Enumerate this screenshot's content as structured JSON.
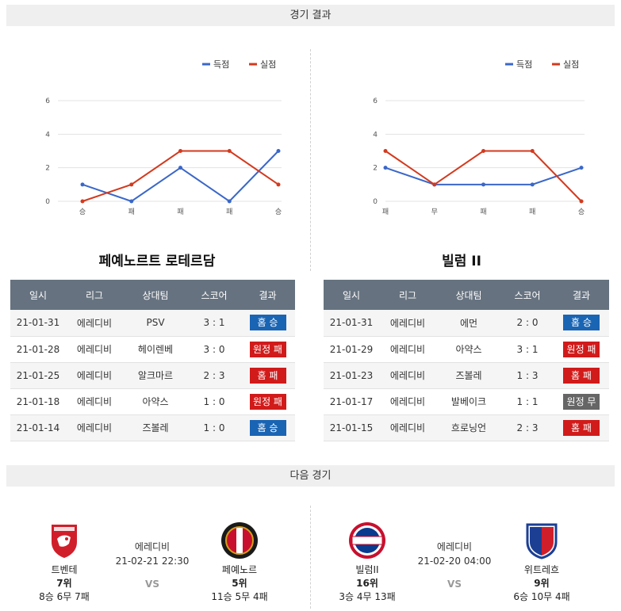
{
  "sections": {
    "results_title": "경기 결과",
    "next_title": "다음 경기"
  },
  "legend": {
    "scored": "득점",
    "conceded": "실점"
  },
  "colors": {
    "scored": "#3a67c9",
    "conceded": "#d33a1e",
    "win": "#1a64b4",
    "lose": "#d11b1b",
    "draw": "#666666",
    "header": "#66727f"
  },
  "chart_data": [
    {
      "type": "line",
      "categories": [
        "승",
        "패",
        "패",
        "패",
        "승"
      ],
      "series": [
        {
          "name": "득점",
          "values": [
            1,
            0,
            2,
            0,
            3
          ]
        },
        {
          "name": "실점",
          "values": [
            0,
            1,
            3,
            3,
            1
          ]
        }
      ],
      "yticks": [
        0,
        2,
        4,
        6
      ],
      "ylim": [
        0,
        6
      ],
      "grid": true,
      "legend": "top-right"
    },
    {
      "type": "line",
      "categories": [
        "패",
        "무",
        "패",
        "패",
        "승"
      ],
      "series": [
        {
          "name": "득점",
          "values": [
            2,
            1,
            1,
            1,
            2
          ]
        },
        {
          "name": "실점",
          "values": [
            3,
            1,
            3,
            3,
            0
          ]
        }
      ],
      "yticks": [
        0,
        2,
        4,
        6
      ],
      "ylim": [
        0,
        6
      ],
      "grid": true,
      "legend": "top-right"
    }
  ],
  "headers": [
    "일시",
    "리그",
    "상대팀",
    "스코어",
    "결과"
  ],
  "teams": [
    {
      "name": "페예노르트 로테르담",
      "rows": [
        {
          "date": "21-01-31",
          "league": "에레디비",
          "opponent": "PSV",
          "score": "3 : 1",
          "result": "홈 승",
          "type": "win"
        },
        {
          "date": "21-01-28",
          "league": "에레디비",
          "opponent": "헤이렌베",
          "score": "3 : 0",
          "result": "원정 패",
          "type": "lose"
        },
        {
          "date": "21-01-25",
          "league": "에레디비",
          "opponent": "알크마르",
          "score": "2 : 3",
          "result": "홈 패",
          "type": "lose"
        },
        {
          "date": "21-01-18",
          "league": "에레디비",
          "opponent": "아약스",
          "score": "1 : 0",
          "result": "원정 패",
          "type": "lose"
        },
        {
          "date": "21-01-14",
          "league": "에레디비",
          "opponent": "즈볼레",
          "score": "1 : 0",
          "result": "홈 승",
          "type": "win"
        }
      ]
    },
    {
      "name": "빌럼 II",
      "rows": [
        {
          "date": "21-01-31",
          "league": "에레디비",
          "opponent": "에먼",
          "score": "2 : 0",
          "result": "홈 승",
          "type": "win"
        },
        {
          "date": "21-01-29",
          "league": "에레디비",
          "opponent": "아약스",
          "score": "3 : 1",
          "result": "원정 패",
          "type": "lose"
        },
        {
          "date": "21-01-23",
          "league": "에레디비",
          "opponent": "즈볼레",
          "score": "1 : 3",
          "result": "홈 패",
          "type": "lose"
        },
        {
          "date": "21-01-17",
          "league": "에레디비",
          "opponent": "발베이크",
          "score": "1 : 1",
          "result": "원정 무",
          "type": "draw"
        },
        {
          "date": "21-01-15",
          "league": "에레디비",
          "opponent": "흐로닝언",
          "score": "2 : 3",
          "result": "홈 패",
          "type": "lose"
        }
      ]
    }
  ],
  "next_matches": [
    {
      "home": {
        "name": "트벤테",
        "rank": "7위",
        "record": "8승 6무 7패",
        "logo": "twente-logo"
      },
      "league": "에레디비",
      "datetime": "21-02-21 22:30",
      "vs": "VS",
      "away": {
        "name": "페예노르",
        "rank": "5위",
        "record": "11승 5무 4패",
        "logo": "feyenoord-logo"
      }
    },
    {
      "home": {
        "name": "빌럼II",
        "rank": "16위",
        "record": "3승 4무 13패",
        "logo": "willem-logo"
      },
      "league": "에레디비",
      "datetime": "21-02-20 04:00",
      "vs": "VS",
      "away": {
        "name": "위트레흐",
        "rank": "9위",
        "record": "6승 10무 4패",
        "logo": "utrecht-logo"
      }
    }
  ]
}
